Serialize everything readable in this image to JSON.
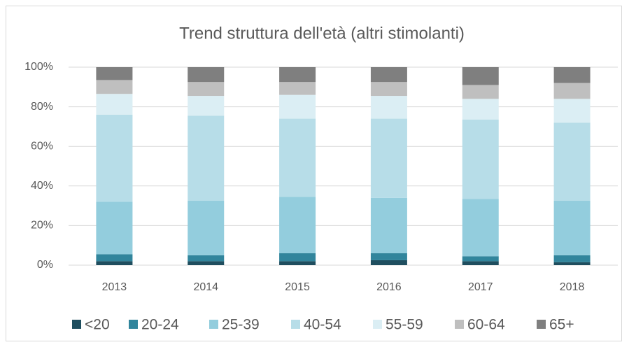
{
  "chart_data": {
    "type": "stacked_bar",
    "title": "Trend struttura dell'età (altri stimolanti)",
    "categories": [
      "2013",
      "2014",
      "2015",
      "2016",
      "2017",
      "2018"
    ],
    "series": [
      {
        "name": "<20",
        "color": "#1f4e5f",
        "values": [
          2,
          2,
          2,
          2.5,
          2,
          1.5
        ]
      },
      {
        "name": "20-24",
        "color": "#31859c",
        "values": [
          3.5,
          3,
          4,
          3.5,
          2.5,
          3.5
        ]
      },
      {
        "name": "25-39",
        "color": "#93cddd",
        "values": [
          26.5,
          27.5,
          28.5,
          28,
          29,
          27.5
        ]
      },
      {
        "name": "40-54",
        "color": "#b7dde8",
        "values": [
          44,
          43,
          39.5,
          40,
          40,
          39.5
        ]
      },
      {
        "name": "55-59",
        "color": "#dbeef4",
        "values": [
          10.5,
          10,
          12,
          11.5,
          10.5,
          12
        ]
      },
      {
        "name": "60-64",
        "color": "#bfbfbf",
        "values": [
          7,
          7,
          6.5,
          7,
          7,
          8
        ]
      },
      {
        "name": "65+",
        "color": "#7f7f7f",
        "values": [
          6.5,
          7.5,
          7.5,
          7.5,
          9,
          8
        ]
      }
    ],
    "ylim": [
      0,
      100
    ],
    "yticks": [
      {
        "value": 0,
        "label": "0%"
      },
      {
        "value": 20,
        "label": "20%"
      },
      {
        "value": 40,
        "label": "40%"
      },
      {
        "value": 60,
        "label": "60%"
      },
      {
        "value": 80,
        "label": "80%"
      },
      {
        "value": 100,
        "label": "100%"
      }
    ],
    "grid": true,
    "legend": "bottom"
  }
}
